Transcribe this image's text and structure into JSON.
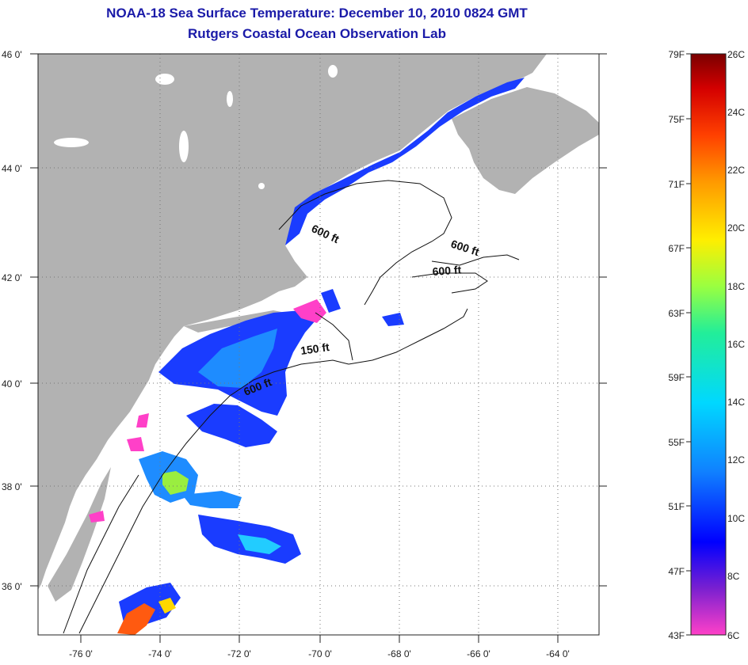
{
  "title": "NOAA-18 Sea Surface Temperature:  December 10, 2010 0824 GMT",
  "subtitle": "Rutgers Coastal Ocean Observation Lab",
  "lat_labels": [
    "46 0'",
    "44 0'",
    "42 0'",
    "40 0'",
    "38 0'",
    "36 0'"
  ],
  "lon_labels": [
    "-76 0'",
    "-74 0'",
    "-72 0'",
    "-70 0'",
    "-68 0'",
    "-66 0'",
    "-64 0'"
  ],
  "isobath_labels": [
    "600 ft",
    "600 ft",
    "600 ft",
    "150 ft",
    "600 ft"
  ],
  "colorbar": {
    "fahrenheit": [
      "79F",
      "75F",
      "71F",
      "67F",
      "63F",
      "59F",
      "55F",
      "51F",
      "47F",
      "43F"
    ],
    "celsius": [
      "26C",
      "24C",
      "22C",
      "20C",
      "18C",
      "16C",
      "14C",
      "12C",
      "10C",
      "8C",
      "6C"
    ],
    "colors": [
      "#7a0000",
      "#d40000",
      "#ff4000",
      "#ff9900",
      "#ffee00",
      "#9aff40",
      "#22ee99",
      "#00d8ff",
      "#1080ff",
      "#0000ff",
      "#7a20d0",
      "#ff40c8"
    ]
  },
  "colors": {
    "land": "#b2b2b2",
    "ocean": "#ffffff",
    "title": "#1a1aa8"
  }
}
